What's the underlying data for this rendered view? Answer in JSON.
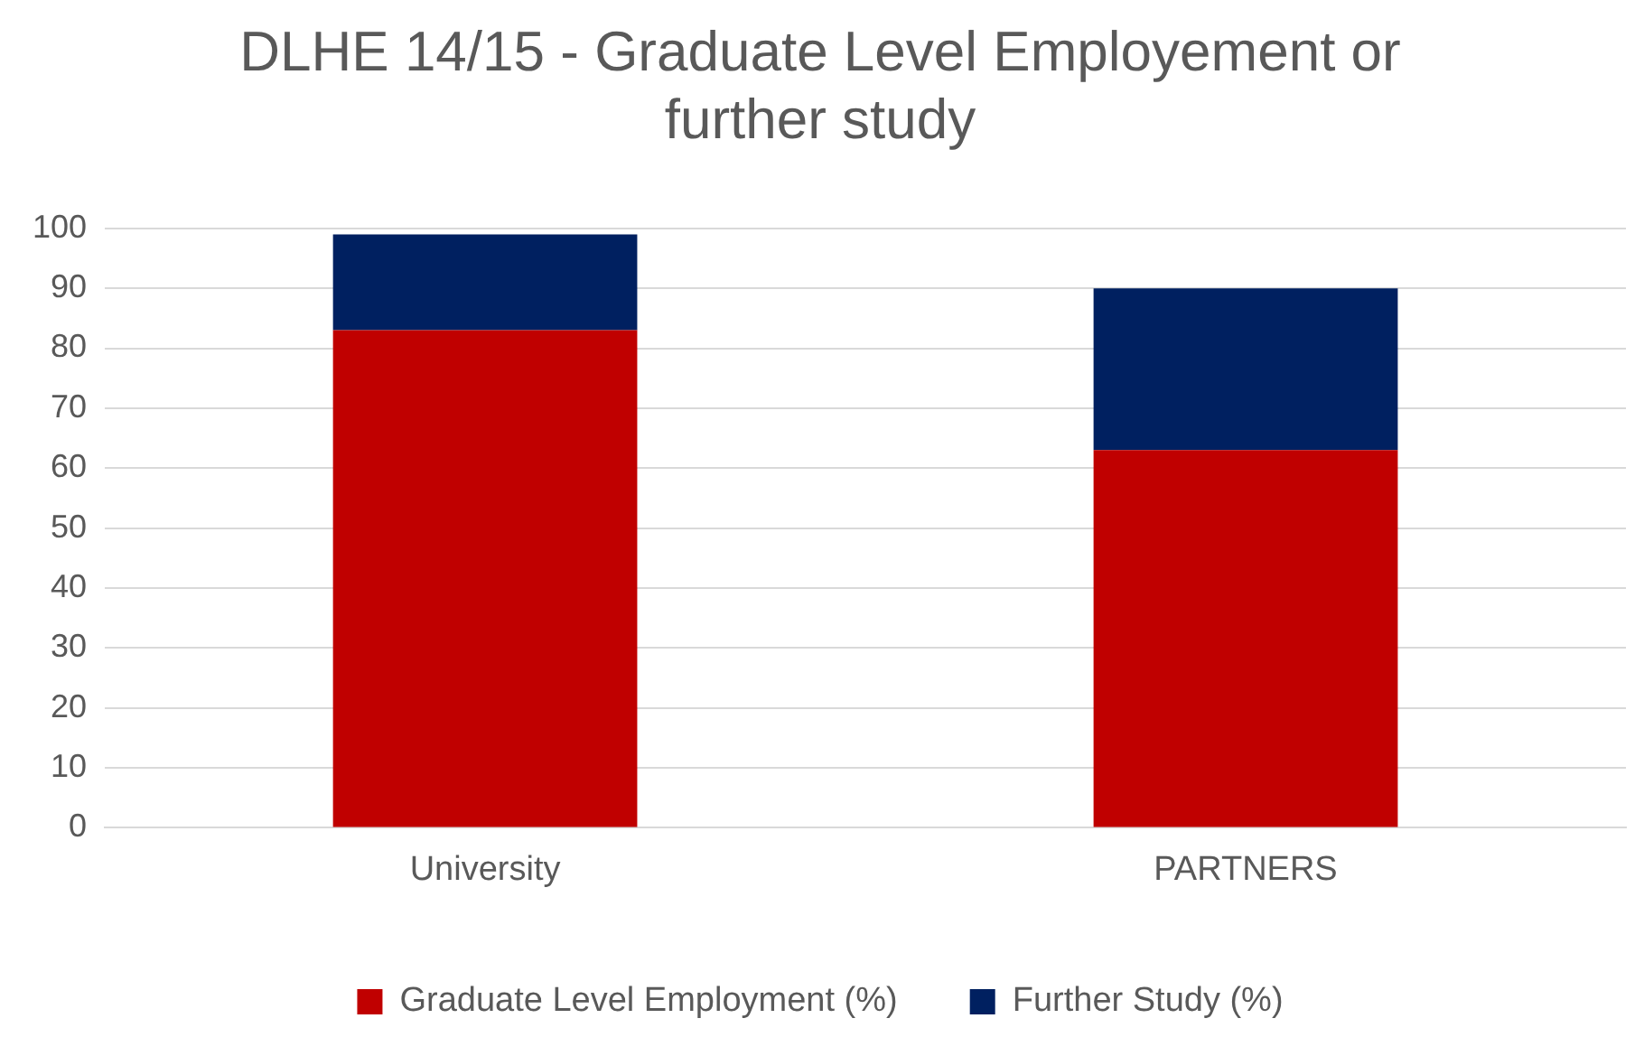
{
  "chart_data": {
    "type": "bar",
    "title": "DLHE 14/15 - Graduate Level Employement or further study",
    "categories": [
      "University",
      "PARTNERS"
    ],
    "stacked": true,
    "series": [
      {
        "name": "Graduate Level Employment (%)",
        "color": "#c00000",
        "values": [
          83,
          63
        ]
      },
      {
        "name": "Further Study (%)",
        "color": "#002060",
        "values": [
          16,
          27
        ]
      }
    ],
    "ylim": [
      0,
      100
    ],
    "yticks": [
      0,
      10,
      20,
      30,
      40,
      50,
      60,
      70,
      80,
      90,
      100
    ],
    "grid": "y",
    "legend": "bottom"
  }
}
